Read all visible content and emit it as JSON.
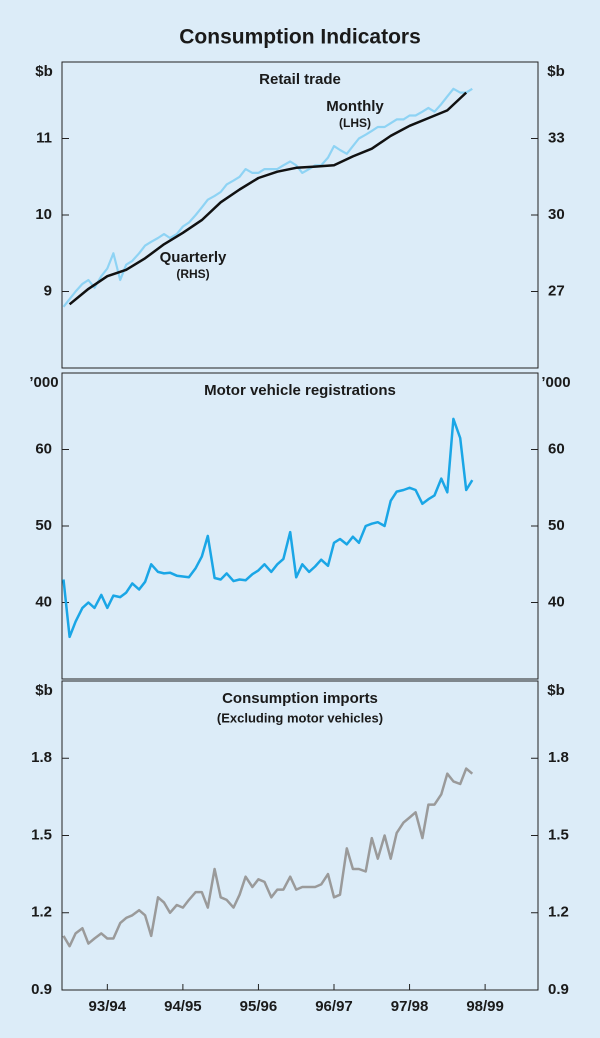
{
  "title": "Consumption Indicators",
  "chart_data": [
    {
      "type": "line",
      "title": "Retail trade",
      "ylabel": "$b",
      "y2label": "$b",
      "xlim": [
        1993.4,
        1999.7
      ],
      "ylim": [
        8,
        12
      ],
      "yticks": [
        9,
        10,
        11
      ],
      "y2lim": [
        24,
        36
      ],
      "y2ticks": [
        27,
        30,
        33
      ],
      "series": [
        {
          "name": "Monthly",
          "axis_label": "(LHS)",
          "color": "#8ed3f4",
          "x": [
            1993.42,
            1993.5,
            1993.58,
            1993.67,
            1993.75,
            1993.83,
            1993.92,
            1994,
            1994.08,
            1994.17,
            1994.25,
            1994.33,
            1994.42,
            1994.5,
            1994.58,
            1994.67,
            1994.75,
            1994.83,
            1994.92,
            1995,
            1995.08,
            1995.17,
            1995.25,
            1995.33,
            1995.42,
            1995.5,
            1995.58,
            1995.67,
            1995.75,
            1995.83,
            1995.92,
            1996,
            1996.08,
            1996.17,
            1996.25,
            1996.33,
            1996.42,
            1996.5,
            1996.58,
            1996.67,
            1996.75,
            1996.83,
            1996.92,
            1997,
            1997.08,
            1997.17,
            1997.25,
            1997.33,
            1997.42,
            1997.5,
            1997.58,
            1997.67,
            1997.75,
            1997.83,
            1997.92,
            1998,
            1998.08,
            1998.17,
            1998.25,
            1998.33,
            1998.42,
            1998.5,
            1998.58,
            1998.67,
            1998.75,
            1998.83
          ],
          "values": [
            8.8,
            8.9,
            9.0,
            9.1,
            9.15,
            9.05,
            9.2,
            9.3,
            9.5,
            9.15,
            9.35,
            9.4,
            9.5,
            9.6,
            9.65,
            9.7,
            9.75,
            9.7,
            9.75,
            9.85,
            9.9,
            10.0,
            10.1,
            10.2,
            10.25,
            10.3,
            10.4,
            10.45,
            10.5,
            10.6,
            10.55,
            10.55,
            10.6,
            10.6,
            10.6,
            10.65,
            10.7,
            10.65,
            10.55,
            10.6,
            10.65,
            10.65,
            10.75,
            10.9,
            10.85,
            10.8,
            10.9,
            11.0,
            11.05,
            11.1,
            11.15,
            11.15,
            11.2,
            11.25,
            11.25,
            11.3,
            11.3,
            11.35,
            11.4,
            11.35,
            11.45,
            11.55,
            11.65,
            11.6,
            11.6,
            11.65
          ]
        },
        {
          "name": "Quarterly",
          "axis_label": "(RHS)",
          "color": "#111111",
          "axis": "y2",
          "x": [
            1993.5,
            1993.75,
            1994,
            1994.25,
            1994.5,
            1994.75,
            1995,
            1995.25,
            1995.5,
            1995.75,
            1996,
            1996.25,
            1996.5,
            1996.75,
            1997,
            1997.25,
            1997.5,
            1997.75,
            1998,
            1998.25,
            1998.5,
            1998.75
          ],
          "values": [
            26.5,
            27.1,
            27.6,
            27.85,
            28.3,
            28.85,
            29.3,
            29.8,
            30.5,
            31.0,
            31.45,
            31.7,
            31.85,
            31.9,
            31.95,
            32.3,
            32.6,
            33.1,
            33.5,
            33.8,
            34.1,
            34.8
          ]
        }
      ]
    },
    {
      "type": "line",
      "title": "Motor vehicle registrations",
      "ylabel": "’000",
      "y2label": "’000",
      "color": "#1aa6e6",
      "xlim": [
        1993.4,
        1999.7
      ],
      "ylim": [
        30,
        70
      ],
      "yticks": [
        40,
        50,
        60
      ],
      "y2lim": [
        30,
        70
      ],
      "y2ticks": [
        40,
        50,
        60
      ],
      "x": [
        1993.42,
        1993.5,
        1993.58,
        1993.67,
        1993.75,
        1993.83,
        1993.92,
        1994,
        1994.08,
        1994.17,
        1994.25,
        1994.33,
        1994.42,
        1994.5,
        1994.58,
        1994.67,
        1994.75,
        1994.83,
        1994.92,
        1995,
        1995.08,
        1995.17,
        1995.25,
        1995.33,
        1995.42,
        1995.5,
        1995.58,
        1995.67,
        1995.75,
        1995.83,
        1995.92,
        1996,
        1996.08,
        1996.17,
        1996.25,
        1996.33,
        1996.42,
        1996.5,
        1996.58,
        1996.67,
        1996.75,
        1996.83,
        1996.92,
        1997,
        1997.08,
        1997.17,
        1997.25,
        1997.33,
        1997.42,
        1997.5,
        1997.58,
        1997.67,
        1997.75,
        1997.83,
        1997.92,
        1998,
        1998.08,
        1998.17,
        1998.25,
        1998.33,
        1998.42,
        1998.5,
        1998.58,
        1998.67,
        1998.75,
        1998.83
      ],
      "values": [
        43.0,
        35.5,
        37.5,
        39.3,
        40.0,
        39.3,
        41.0,
        39.3,
        40.9,
        40.7,
        41.3,
        42.5,
        41.7,
        42.7,
        45.0,
        44.0,
        43.8,
        43.9,
        43.5,
        43.4,
        43.3,
        44.5,
        46.0,
        48.7,
        43.2,
        43.0,
        43.8,
        42.8,
        43.0,
        42.9,
        43.7,
        44.2,
        45.0,
        44.0,
        45.0,
        45.7,
        49.2,
        43.3,
        45.0,
        44.0,
        44.7,
        45.6,
        44.8,
        47.8,
        48.3,
        47.6,
        48.6,
        47.8,
        50.0,
        50.3,
        50.5,
        50.0,
        53.3,
        54.5,
        54.7,
        55.0,
        54.7,
        52.9,
        53.5,
        54.0,
        56.2,
        54.4,
        64.0,
        61.5,
        54.7,
        56.0
      ]
    },
    {
      "type": "line",
      "title": "Consumption imports",
      "subtitle": "(Excluding motor vehicles)",
      "ylabel": "$b",
      "y2label": "$b",
      "color": "#9a9a9a",
      "xlim": [
        1993.4,
        1999.7
      ],
      "ylim": [
        0.9,
        2.1
      ],
      "yticks": [
        0.9,
        1.2,
        1.5,
        1.8
      ],
      "y2lim": [
        0.9,
        2.1
      ],
      "y2ticks": [
        0.9,
        1.2,
        1.5,
        1.8
      ],
      "xticks": [
        {
          "value": 1994,
          "label": "93/94"
        },
        {
          "value": 1995,
          "label": "94/95"
        },
        {
          "value": 1996,
          "label": "95/96"
        },
        {
          "value": 1997,
          "label": "96/97"
        },
        {
          "value": 1998,
          "label": "97/98"
        },
        {
          "value": 1999,
          "label": "98/99"
        }
      ],
      "x": [
        1993.42,
        1993.5,
        1993.58,
        1993.67,
        1993.75,
        1993.83,
        1993.92,
        1994,
        1994.08,
        1994.17,
        1994.25,
        1994.33,
        1994.42,
        1994.5,
        1994.58,
        1994.67,
        1994.75,
        1994.83,
        1994.92,
        1995,
        1995.08,
        1995.17,
        1995.25,
        1995.33,
        1995.42,
        1995.5,
        1995.58,
        1995.67,
        1995.75,
        1995.83,
        1995.92,
        1996,
        1996.08,
        1996.17,
        1996.25,
        1996.33,
        1996.42,
        1996.5,
        1996.58,
        1996.67,
        1996.75,
        1996.83,
        1996.92,
        1997,
        1997.08,
        1997.17,
        1997.25,
        1997.33,
        1997.42,
        1997.5,
        1997.58,
        1997.67,
        1997.75,
        1997.83,
        1997.92,
        1998,
        1998.08,
        1998.17,
        1998.25,
        1998.33,
        1998.42,
        1998.5,
        1998.58,
        1998.67,
        1998.75,
        1998.83
      ],
      "values": [
        1.11,
        1.07,
        1.12,
        1.14,
        1.08,
        1.1,
        1.12,
        1.1,
        1.1,
        1.16,
        1.18,
        1.19,
        1.21,
        1.19,
        1.11,
        1.26,
        1.24,
        1.2,
        1.23,
        1.22,
        1.25,
        1.28,
        1.28,
        1.22,
        1.37,
        1.26,
        1.25,
        1.22,
        1.27,
        1.34,
        1.3,
        1.33,
        1.32,
        1.26,
        1.29,
        1.29,
        1.34,
        1.29,
        1.3,
        1.3,
        1.3,
        1.31,
        1.35,
        1.26,
        1.27,
        1.45,
        1.37,
        1.37,
        1.36,
        1.49,
        1.41,
        1.5,
        1.41,
        1.51,
        1.55,
        1.57,
        1.59,
        1.49,
        1.62,
        1.62,
        1.66,
        1.74,
        1.71,
        1.7,
        1.76,
        1.74
      ]
    }
  ]
}
